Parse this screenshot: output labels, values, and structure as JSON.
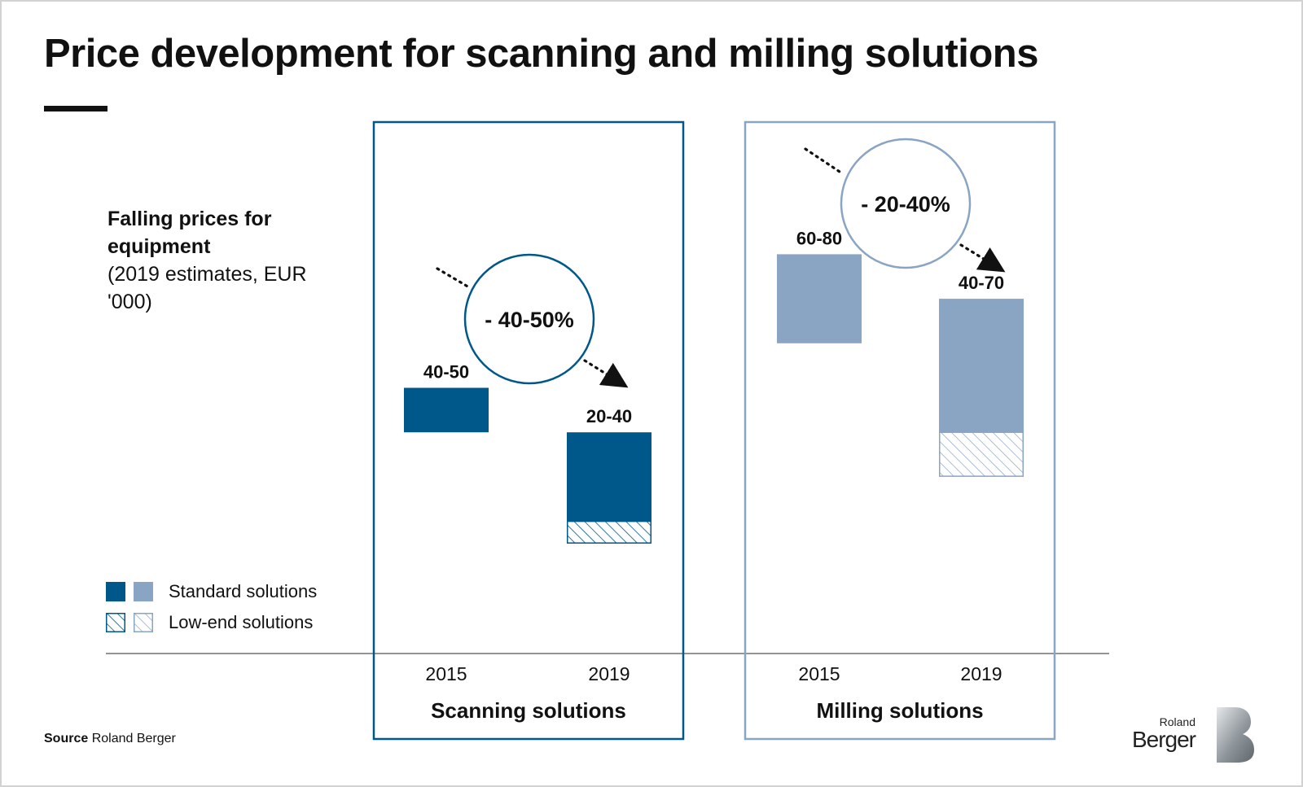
{
  "title": "Price development for scanning and milling solutions",
  "subtitle_bold": "Falling prices for equipment",
  "subtitle_rest": "(2019 estimates, EUR '000)",
  "legend": {
    "standard": "Standard solutions",
    "low_end": "Low-end solutions"
  },
  "source_label": "Source",
  "source_text": "Roland Berger",
  "brand": {
    "small": "Roland",
    "big": "Berger"
  },
  "colors": {
    "scanning": "#00578a",
    "milling": "#8aa4c4",
    "text": "#111111"
  },
  "chart_data": {
    "type": "bar",
    "y_unit": "EUR '000",
    "panels": [
      {
        "name": "Scanning solutions",
        "color": "#00578a",
        "change_label": "- 40-50%",
        "bars": [
          {
            "year": "2015",
            "label": "40-50",
            "standard": [
              40,
              50
            ],
            "low_end": null
          },
          {
            "year": "2019",
            "label": "20-40",
            "standard": [
              20,
              40
            ],
            "low_end": [
              15,
              20
            ]
          }
        ]
      },
      {
        "name": "Milling solutions",
        "color": "#8aa4c4",
        "change_label": "- 20-40%",
        "bars": [
          {
            "year": "2015",
            "label": "60-80",
            "standard": [
              60,
              80
            ],
            "low_end": null
          },
          {
            "year": "2019",
            "label": "40-70",
            "standard": [
              40,
              70
            ],
            "low_end": [
              30,
              40
            ]
          }
        ]
      }
    ]
  }
}
